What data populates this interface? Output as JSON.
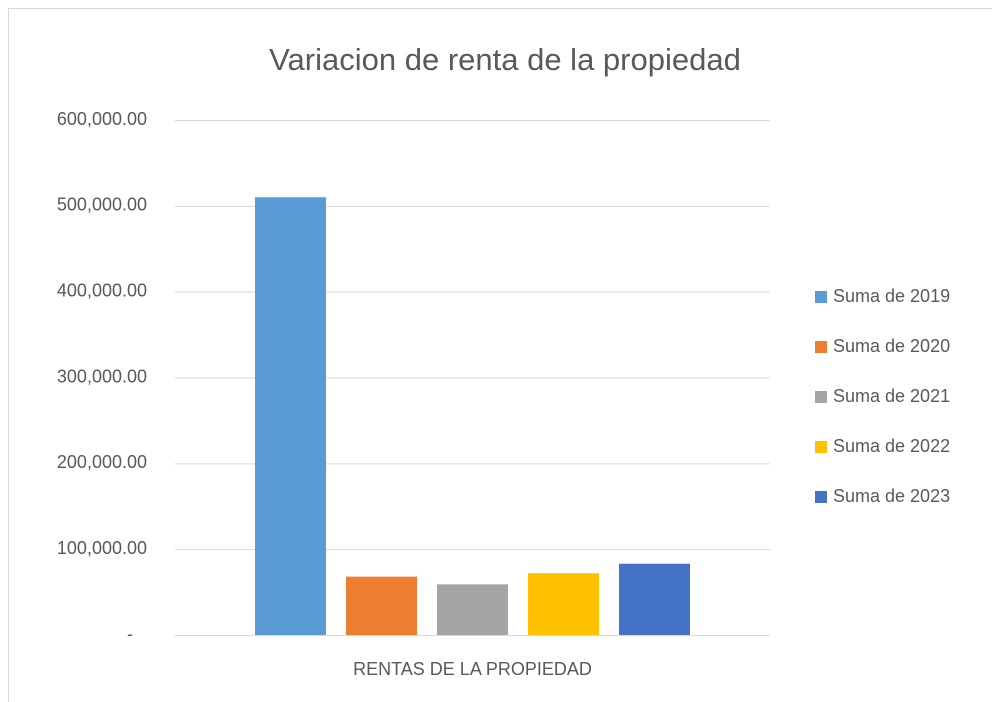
{
  "chart_data": {
    "type": "bar",
    "title": "Variacion  de renta de la propiedad",
    "categories": [
      "RENTAS DE LA PROPIEDAD"
    ],
    "series": [
      {
        "name": "Suma de 2019",
        "color": "#5b9bd5",
        "values": [
          510000
        ]
      },
      {
        "name": "Suma de 2020",
        "color": "#ed7d31",
        "values": [
          68000
        ]
      },
      {
        "name": "Suma de 2021",
        "color": "#a5a5a5",
        "values": [
          59000
        ]
      },
      {
        "name": "Suma de 2022",
        "color": "#ffc000",
        "values": [
          72000
        ]
      },
      {
        "name": "Suma de 2023",
        "color": "#4472c4",
        "values": [
          83000
        ]
      }
    ],
    "ylim": [
      0,
      600000
    ],
    "yticks": [
      {
        "value": 0,
        "label": "-"
      },
      {
        "value": 100000,
        "label": "100,000.00"
      },
      {
        "value": 200000,
        "label": "200,000.00"
      },
      {
        "value": 300000,
        "label": "300,000.00"
      },
      {
        "value": 400000,
        "label": "400,000.00"
      },
      {
        "value": 500000,
        "label": "500,000.00"
      },
      {
        "value": 600000,
        "label": "600,000.00"
      }
    ],
    "grid": true,
    "legend": "right"
  }
}
